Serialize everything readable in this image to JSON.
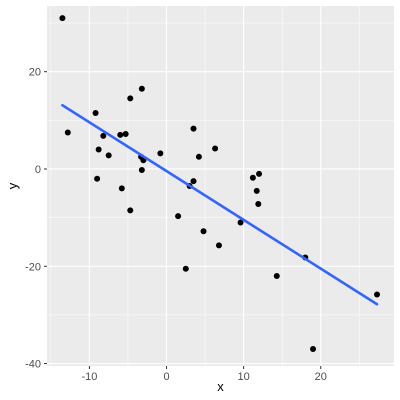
{
  "chart_data": {
    "type": "scatter",
    "title": "",
    "xlabel": "x",
    "ylabel": "y",
    "xlim": [
      -15.5,
      29.5
    ],
    "ylim": [
      -40.5,
      33.5
    ],
    "x_ticks": [
      -10,
      0,
      10,
      20
    ],
    "y_ticks": [
      -40,
      -20,
      0,
      20
    ],
    "x_tick_labels": [
      "-10",
      "0",
      "10",
      "20"
    ],
    "y_tick_labels": [
      "-40",
      "-20",
      "0",
      "20"
    ],
    "grid": true,
    "legend": "none",
    "points": [
      {
        "x": -13.5,
        "y": 31.0
      },
      {
        "x": -12.8,
        "y": 7.5
      },
      {
        "x": -9.2,
        "y": 11.5
      },
      {
        "x": -8.8,
        "y": 4.0
      },
      {
        "x": -9.0,
        "y": -2.0
      },
      {
        "x": -8.2,
        "y": 6.8
      },
      {
        "x": -7.5,
        "y": 2.8
      },
      {
        "x": -6.0,
        "y": 7.0
      },
      {
        "x": -5.3,
        "y": 7.2
      },
      {
        "x": -5.8,
        "y": -4.0
      },
      {
        "x": -4.7,
        "y": 14.5
      },
      {
        "x": -4.7,
        "y": -8.5
      },
      {
        "x": -3.2,
        "y": 16.5
      },
      {
        "x": -3.3,
        "y": 2.5
      },
      {
        "x": -3.0,
        "y": 1.8
      },
      {
        "x": -3.2,
        "y": -0.2
      },
      {
        "x": -0.8,
        "y": 3.2
      },
      {
        "x": 1.5,
        "y": -9.7
      },
      {
        "x": 2.5,
        "y": -20.5
      },
      {
        "x": 3.0,
        "y": -3.5
      },
      {
        "x": 3.5,
        "y": -2.5
      },
      {
        "x": 3.5,
        "y": 8.3
      },
      {
        "x": 4.2,
        "y": 2.5
      },
      {
        "x": 4.8,
        "y": -12.8
      },
      {
        "x": 6.3,
        "y": 4.2
      },
      {
        "x": 6.8,
        "y": -15.7
      },
      {
        "x": 9.6,
        "y": -11.0
      },
      {
        "x": 11.2,
        "y": -1.8
      },
      {
        "x": 11.7,
        "y": -4.5
      },
      {
        "x": 11.9,
        "y": -7.2
      },
      {
        "x": 12.0,
        "y": -1.0
      },
      {
        "x": 14.3,
        "y": -22.0
      },
      {
        "x": 18.0,
        "y": -18.2
      },
      {
        "x": 19.0,
        "y": -37.0
      },
      {
        "x": 27.3,
        "y": -25.8
      }
    ],
    "fit_line": {
      "x": [
        -13.5,
        27.3
      ],
      "y": [
        13.1,
        -27.8
      ]
    },
    "colors": {
      "panel": "#ebebeb",
      "grid_major": "#ffffff",
      "point": "#000000",
      "line": "#3366ff",
      "tick_text": "#4d4d4d"
    }
  }
}
